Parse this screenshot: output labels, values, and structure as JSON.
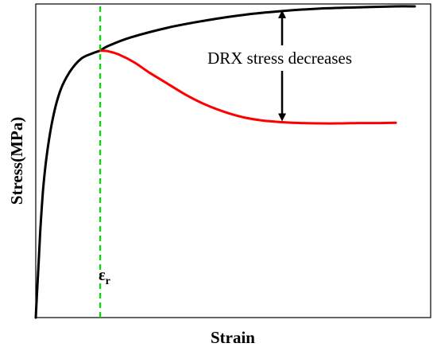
{
  "chart_data": {
    "type": "line",
    "title": "",
    "xlabel": "Strain",
    "ylabel": "Stress(MPa)",
    "xlim": [
      0,
      1
    ],
    "ylim": [
      0,
      1
    ],
    "grid": false,
    "ticks": false,
    "series": [
      {
        "color": "#000000",
        "x": [
          0.0,
          0.003,
          0.007,
          0.012,
          0.02,
          0.03,
          0.045,
          0.065,
          0.09,
          0.12,
          0.15,
          0.17,
          0.19,
          0.25,
          0.35,
          0.45,
          0.55,
          0.65,
          0.75,
          0.85,
          0.95,
          1.0
        ],
        "y": [
          0.0,
          0.07,
          0.16,
          0.28,
          0.42,
          0.53,
          0.64,
          0.73,
          0.79,
          0.832,
          0.849,
          0.858,
          0.872,
          0.9,
          0.932,
          0.955,
          0.973,
          0.985,
          0.993,
          0.997,
          1.0,
          1.0
        ]
      },
      {
        "color": "#ff0000",
        "x": [
          0.17,
          0.19,
          0.22,
          0.26,
          0.3,
          0.35,
          0.4,
          0.45,
          0.5,
          0.55,
          0.6,
          0.65,
          0.7,
          0.75,
          0.8,
          0.85,
          0.9,
          0.95
        ],
        "y": [
          0.858,
          0.856,
          0.845,
          0.82,
          0.787,
          0.75,
          0.713,
          0.683,
          0.66,
          0.643,
          0.633,
          0.628,
          0.625,
          0.624,
          0.624,
          0.625,
          0.625,
          0.626
        ]
      }
    ],
    "critical_strain": {
      "x": 0.17,
      "label_main": "ε",
      "label_sub": "r",
      "color": "#00dd00"
    },
    "annotation": {
      "text": "DRX stress decreases",
      "x": 0.65,
      "y_top": 0.985,
      "y_bottom": 0.633
    }
  }
}
